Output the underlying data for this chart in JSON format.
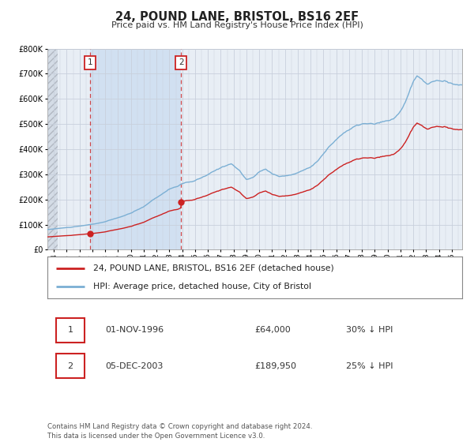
{
  "title": "24, POUND LANE, BRISTOL, BS16 2EF",
  "subtitle": "Price paid vs. HM Land Registry's House Price Index (HPI)",
  "footer": "Contains HM Land Registry data © Crown copyright and database right 2024.\nThis data is licensed under the Open Government Licence v3.0.",
  "legend_line1": "24, POUND LANE, BRISTOL, BS16 2EF (detached house)",
  "legend_line2": "HPI: Average price, detached house, City of Bristol",
  "transaction1": {
    "label": "1",
    "date": "01-NOV-1996",
    "price": "£64,000",
    "hpi": "30% ↓ HPI"
  },
  "transaction2": {
    "label": "2",
    "date": "05-DEC-2003",
    "price": "£189,950",
    "hpi": "25% ↓ HPI"
  },
  "hpi_color": "#7bafd4",
  "price_color": "#cc2222",
  "background_color": "#ffffff",
  "plot_bg_color": "#e8eef5",
  "highlight_color": "#ccddf0",
  "grid_color": "#c8d0dc",
  "ylim": [
    0,
    800000
  ],
  "xlim_start": 1993.5,
  "xlim_end": 2025.8,
  "transaction1_x": 1996.833,
  "transaction1_y": 64000,
  "transaction2_x": 2003.917,
  "transaction2_y": 189950
}
